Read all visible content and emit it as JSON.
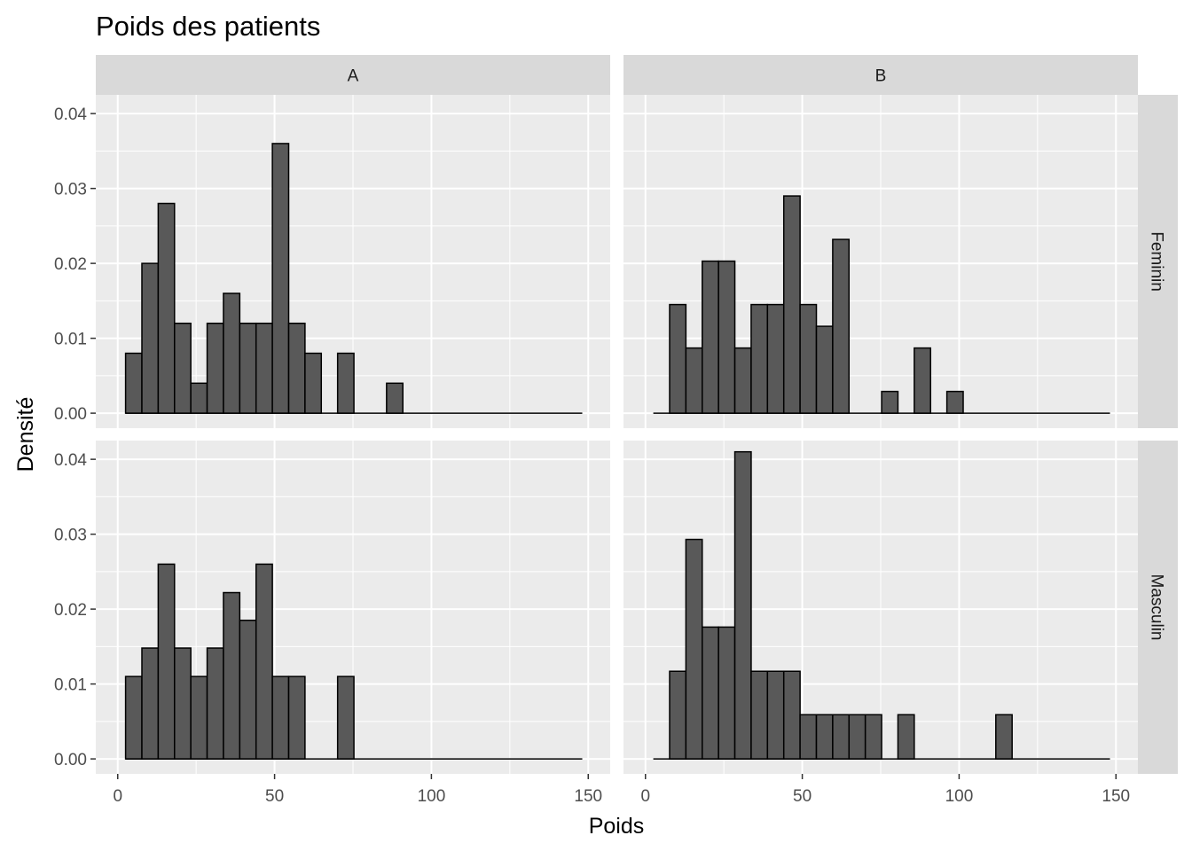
{
  "chart_data": {
    "type": "bar",
    "title": "Poids des patients",
    "xlabel": "Poids",
    "ylabel": "Densité",
    "xlim": [
      -7,
      157
    ],
    "ylim": [
      -0.002,
      0.0425
    ],
    "x_ticks": [
      0,
      50,
      100,
      150
    ],
    "y_ticks": [
      0,
      0.01,
      0.02,
      0.03,
      0.04
    ],
    "x_tick_labels": [
      "0",
      "50",
      "100",
      "150"
    ],
    "y_tick_labels": [
      "0.00",
      "0.01",
      "0.02",
      "0.03",
      "0.04"
    ],
    "bin_start": 2.5,
    "bin_width": 5.2,
    "bin_count": 28,
    "grid": true,
    "facet_columns": [
      "A",
      "B"
    ],
    "facet_rows": [
      "Feminin",
      "Masculin"
    ],
    "panels": [
      {
        "column": "A",
        "row": "Feminin",
        "values": [
          0.008,
          0.02,
          0.028,
          0.012,
          0.004,
          0.012,
          0.016,
          0.012,
          0.012,
          0.036,
          0.012,
          0.008,
          0,
          0.008,
          0,
          0,
          0.004,
          0,
          0,
          0,
          0,
          0,
          0,
          0,
          0,
          0,
          0,
          0
        ]
      },
      {
        "column": "B",
        "row": "Feminin",
        "values": [
          0,
          0.0145,
          0.0087,
          0.0203,
          0.0203,
          0.0087,
          0.0145,
          0.0145,
          0.029,
          0.0145,
          0.0116,
          0.0232,
          0,
          0,
          0.0029,
          0,
          0.0087,
          0,
          0.0029,
          0,
          0,
          0,
          0,
          0,
          0,
          0,
          0,
          0
        ]
      },
      {
        "column": "A",
        "row": "Masculin",
        "values": [
          0.011,
          0.0148,
          0.026,
          0.0148,
          0.011,
          0.0148,
          0.0222,
          0.0185,
          0.026,
          0.011,
          0.011,
          0,
          0,
          0.011,
          0,
          0,
          0,
          0,
          0,
          0,
          0,
          0,
          0,
          0,
          0,
          0,
          0,
          0
        ]
      },
      {
        "column": "B",
        "row": "Masculin",
        "values": [
          0,
          0.0117,
          0.0293,
          0.0176,
          0.0176,
          0.041,
          0.0117,
          0.0117,
          0.0117,
          0.0059,
          0.0059,
          0.0059,
          0.0059,
          0.0059,
          0,
          0.0059,
          0,
          0,
          0,
          0,
          0,
          0.0059,
          0,
          0,
          0,
          0,
          0,
          0
        ]
      }
    ]
  }
}
